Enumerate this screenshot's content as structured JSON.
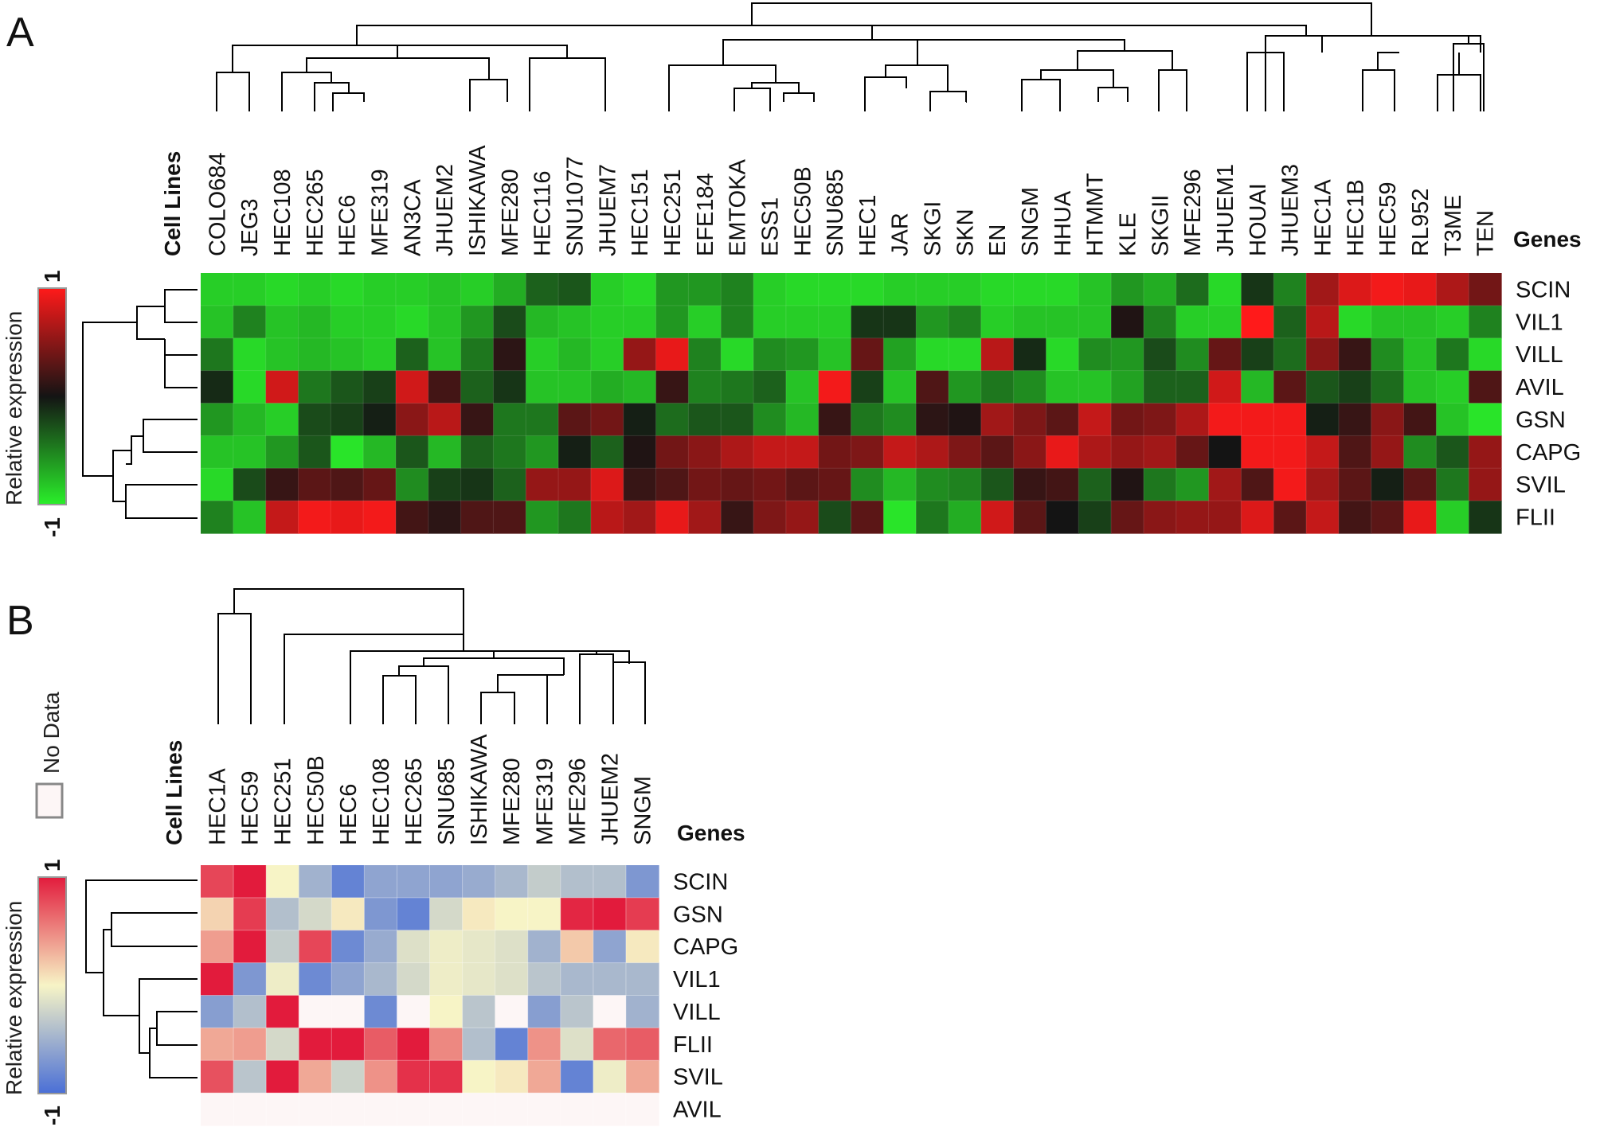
{
  "chart_data": [
    {
      "type": "heatmap",
      "panel_label": "A",
      "col_header": "Cell Lines",
      "row_header": "Genes",
      "colorbar": {
        "label": "Relative expression",
        "max_label": "1",
        "min_label": "-1",
        "colors": [
          "#ff1a1a",
          "#141414",
          "#2aef2a"
        ]
      },
      "columns": [
        "COLO684",
        "JEG3",
        "HEC108",
        "HEC265",
        "HEC6",
        "MFE319",
        "AN3CA",
        "JHUEM2",
        "ISHIKAWA",
        "MFE280",
        "HEC116",
        "SNU1077",
        "JHUEM7",
        "HEC151",
        "HEC251",
        "EFE184",
        "EMTOKA",
        "ESS1",
        "HEC50B",
        "SNU685",
        "HEC1",
        "JAR",
        "SKGI",
        "SKN",
        "EN",
        "SNGM",
        "HHUA",
        "HTMMT",
        "KLE",
        "SKGII",
        "MFE296",
        "JHUEM1",
        "HOUAI",
        "JHUEM3",
        "HEC1A",
        "HEC1B",
        "HEC59",
        "RL952",
        "T3ME",
        "TEN"
      ],
      "rows": [
        "SCIN",
        "VIL1",
        "VILL",
        "AVIL",
        "GSN",
        "CAPG",
        "SVIL",
        "FLII"
      ],
      "values": [
        [
          -0.85,
          -0.85,
          -0.9,
          -0.85,
          -0.9,
          -0.85,
          -0.85,
          -0.8,
          -0.85,
          -0.7,
          -0.35,
          -0.3,
          -0.85,
          -0.9,
          -0.6,
          -0.6,
          -0.5,
          -0.85,
          -0.9,
          -0.9,
          -0.9,
          -0.85,
          -0.85,
          -0.85,
          -0.9,
          -0.9,
          -0.9,
          -0.8,
          -0.6,
          -0.7,
          -0.4,
          -0.9,
          -0.15,
          -0.5,
          0.6,
          0.85,
          0.95,
          0.9,
          0.65,
          0.4
        ],
        [
          -0.8,
          -0.5,
          -0.8,
          -0.75,
          -0.85,
          -0.85,
          -0.9,
          -0.8,
          -0.6,
          -0.25,
          -0.75,
          -0.8,
          -0.85,
          -0.85,
          -0.6,
          -0.85,
          -0.5,
          -0.85,
          -0.85,
          -0.85,
          -0.15,
          -0.15,
          -0.6,
          -0.5,
          -0.85,
          -0.8,
          -0.8,
          -0.8,
          0.05,
          -0.5,
          -0.85,
          -0.85,
          1.0,
          -0.35,
          0.7,
          -0.9,
          -0.8,
          -0.8,
          -0.85,
          -0.5
        ],
        [
          -0.45,
          -0.9,
          -0.8,
          -0.75,
          -0.8,
          -0.85,
          -0.35,
          -0.8,
          -0.45,
          0.1,
          -0.85,
          -0.75,
          -0.85,
          0.55,
          0.9,
          -0.5,
          -0.9,
          -0.55,
          -0.6,
          -0.8,
          0.35,
          -0.65,
          -0.9,
          -0.9,
          0.7,
          -0.1,
          -0.9,
          -0.55,
          -0.6,
          -0.25,
          -0.55,
          0.35,
          -0.2,
          -0.4,
          0.5,
          0.15,
          -0.55,
          -0.8,
          -0.45,
          -0.9
        ],
        [
          -0.1,
          -0.9,
          0.8,
          -0.45,
          -0.3,
          -0.2,
          0.8,
          0.2,
          -0.35,
          -0.15,
          -0.8,
          -0.8,
          -0.7,
          -0.75,
          0.15,
          -0.5,
          -0.45,
          -0.35,
          -0.8,
          0.95,
          -0.2,
          -0.8,
          0.25,
          -0.6,
          -0.45,
          -0.55,
          -0.8,
          -0.8,
          -0.65,
          -0.35,
          -0.35,
          0.8,
          -0.75,
          0.3,
          -0.3,
          -0.2,
          -0.4,
          -0.8,
          -0.85,
          0.25
        ],
        [
          -0.6,
          -0.75,
          -0.85,
          -0.25,
          -0.2,
          -0.05,
          0.5,
          0.7,
          0.15,
          -0.45,
          -0.45,
          0.3,
          0.4,
          -0.05,
          -0.4,
          -0.3,
          -0.3,
          -0.55,
          -0.75,
          0.15,
          -0.45,
          -0.55,
          0.1,
          0.05,
          0.6,
          0.45,
          0.3,
          0.75,
          0.4,
          0.45,
          0.65,
          0.95,
          0.95,
          0.95,
          -0.05,
          0.15,
          0.5,
          0.2,
          -0.8,
          -0.95
        ],
        [
          -0.8,
          -0.8,
          -0.6,
          -0.3,
          -0.95,
          -0.75,
          -0.3,
          -0.75,
          -0.35,
          -0.45,
          -0.6,
          -0.05,
          -0.35,
          0.05,
          0.4,
          0.5,
          0.65,
          0.75,
          0.75,
          0.4,
          0.45,
          0.75,
          0.65,
          0.45,
          0.3,
          0.5,
          0.9,
          0.65,
          0.55,
          0.6,
          0.35,
          0.0,
          0.95,
          0.95,
          0.75,
          0.25,
          0.55,
          -0.55,
          -0.3,
          0.55
        ],
        [
          -0.9,
          -0.25,
          0.15,
          0.3,
          0.25,
          0.35,
          -0.55,
          -0.2,
          -0.15,
          -0.35,
          0.55,
          0.55,
          0.85,
          0.15,
          0.25,
          0.4,
          0.35,
          0.4,
          0.3,
          0.35,
          -0.55,
          -0.75,
          -0.55,
          -0.5,
          -0.3,
          0.15,
          0.2,
          -0.35,
          0.05,
          -0.45,
          -0.6,
          0.6,
          0.25,
          0.95,
          0.6,
          0.3,
          -0.05,
          0.3,
          -0.45,
          0.55
        ],
        [
          -0.5,
          -0.8,
          0.75,
          0.95,
          0.9,
          0.95,
          0.2,
          0.1,
          0.25,
          0.25,
          -0.6,
          -0.45,
          0.7,
          0.6,
          0.9,
          0.6,
          0.15,
          0.45,
          0.55,
          -0.25,
          0.3,
          -0.95,
          -0.45,
          -0.7,
          0.8,
          0.3,
          0.0,
          -0.2,
          0.35,
          0.5,
          0.55,
          0.55,
          0.85,
          0.3,
          0.75,
          0.2,
          0.3,
          0.9,
          -0.85,
          -0.15
        ]
      ]
    },
    {
      "type": "heatmap",
      "panel_label": "B",
      "col_header": "Cell Lines",
      "row_header": "Genes",
      "colorbar": {
        "label": "Relative expression",
        "max_label": "1",
        "min_label": "-1",
        "colors": [
          "#e21b3c",
          "#f7f4c6",
          "#4a6fd6"
        ]
      },
      "legend": {
        "label": "No Data",
        "color": "#fdf6f6"
      },
      "columns": [
        "HEC1A",
        "HEC59",
        "HEC251",
        "HEC50B",
        "HEC6",
        "HEC108",
        "HEC265",
        "SNU685",
        "ISHIKAWA",
        "MFE280",
        "MFE319",
        "MFE296",
        "JHUEM2",
        "SNGM"
      ],
      "rows": [
        "SCIN",
        "GSN",
        "CAPG",
        "VIL1",
        "VILL",
        "FLII",
        "SVIL",
        "AVIL"
      ],
      "values": [
        [
          0.8,
          1.0,
          0.0,
          -0.5,
          -0.85,
          -0.6,
          -0.6,
          -0.6,
          -0.55,
          -0.45,
          -0.3,
          -0.4,
          -0.4,
          -0.7
        ],
        [
          0.15,
          0.85,
          -0.4,
          -0.2,
          0.05,
          -0.7,
          -0.85,
          -0.2,
          0.05,
          0.0,
          0.0,
          0.95,
          1.0,
          0.85
        ],
        [
          0.4,
          1.0,
          -0.3,
          0.8,
          -0.8,
          -0.55,
          -0.15,
          -0.05,
          -0.1,
          -0.15,
          -0.5,
          0.2,
          -0.6,
          0.05
        ],
        [
          1.0,
          -0.7,
          -0.05,
          -0.8,
          -0.6,
          -0.45,
          -0.2,
          -0.05,
          -0.1,
          -0.15,
          -0.35,
          -0.45,
          -0.45,
          -0.45
        ],
        [
          -0.65,
          -0.4,
          1.0,
          null,
          null,
          -0.8,
          null,
          0.0,
          -0.35,
          null,
          -0.65,
          -0.35,
          null,
          -0.5
        ],
        [
          0.35,
          0.4,
          -0.2,
          1.0,
          1.0,
          0.7,
          1.0,
          0.5,
          -0.4,
          -0.85,
          0.45,
          -0.15,
          0.65,
          0.7
        ],
        [
          0.75,
          -0.35,
          1.0,
          0.35,
          -0.25,
          0.45,
          0.9,
          0.9,
          0.0,
          0.05,
          0.35,
          -0.85,
          -0.05,
          0.35
        ],
        [
          null,
          null,
          null,
          null,
          null,
          null,
          null,
          null,
          null,
          null,
          null,
          null,
          null,
          null
        ]
      ]
    }
  ]
}
